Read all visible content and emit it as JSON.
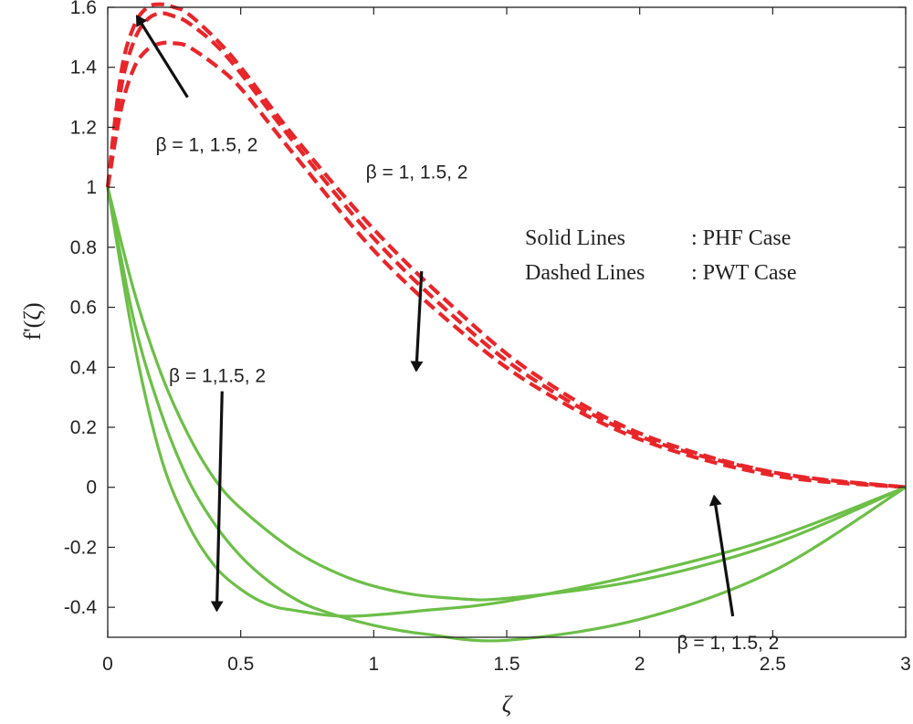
{
  "chart_data": {
    "type": "line",
    "xlabel": "ζ",
    "ylabel": "f'(ζ)",
    "xlim": [
      0,
      3
    ],
    "ylim": [
      -0.5,
      1.6
    ],
    "xticks": [
      "0",
      "0.5",
      "1",
      "1.5",
      "2",
      "2.5",
      "3"
    ],
    "yticks": [
      "-0.4",
      "-0.2",
      "0",
      "0.2",
      "0.4",
      "0.6",
      "0.8",
      "1",
      "1.2",
      "1.4",
      "1.6"
    ],
    "grid": false,
    "colors": {
      "solid": "#6cbf47",
      "dashed": "#e8262a",
      "arrow": "#111111",
      "axis": "#222222"
    },
    "series": [
      {
        "style": "dashed",
        "x": [
          0,
          0.05,
          0.1,
          0.15,
          0.2,
          0.25,
          0.3,
          0.4,
          0.5,
          0.7,
          1.0,
          1.3,
          1.6,
          2.0,
          2.5,
          3.0
        ],
        "values": [
          1.0,
          1.38,
          1.54,
          1.6,
          1.61,
          1.6,
          1.58,
          1.5,
          1.4,
          1.17,
          0.86,
          0.6,
          0.38,
          0.18,
          0.05,
          0.0
        ]
      },
      {
        "style": "dashed",
        "x": [
          0,
          0.05,
          0.1,
          0.15,
          0.2,
          0.25,
          0.3,
          0.4,
          0.5,
          0.7,
          1.0,
          1.3,
          1.6,
          2.0,
          2.5,
          3.0
        ],
        "values": [
          1.0,
          1.33,
          1.49,
          1.56,
          1.58,
          1.57,
          1.55,
          1.48,
          1.38,
          1.15,
          0.83,
          0.57,
          0.36,
          0.17,
          0.05,
          0.0
        ]
      },
      {
        "style": "dashed",
        "x": [
          0,
          0.05,
          0.1,
          0.15,
          0.2,
          0.25,
          0.3,
          0.4,
          0.5,
          0.7,
          1.0,
          1.3,
          1.6,
          2.0,
          2.5,
          3.0
        ],
        "values": [
          1.0,
          1.26,
          1.4,
          1.46,
          1.48,
          1.48,
          1.47,
          1.41,
          1.33,
          1.11,
          0.79,
          0.54,
          0.34,
          0.16,
          0.04,
          0.0
        ]
      },
      {
        "style": "solid",
        "x": [
          0,
          0.1,
          0.2,
          0.3,
          0.4,
          0.5,
          0.6,
          0.7,
          0.8,
          1.0,
          1.2,
          1.5,
          2.0,
          2.5,
          3.0
        ],
        "values": [
          1.0,
          0.55,
          0.25,
          0.03,
          -0.12,
          -0.23,
          -0.31,
          -0.37,
          -0.41,
          -0.46,
          -0.49,
          -0.51,
          -0.44,
          -0.28,
          0.0
        ]
      },
      {
        "style": "solid",
        "x": [
          0,
          0.1,
          0.2,
          0.3,
          0.4,
          0.5,
          0.7,
          0.9,
          1.1,
          1.3,
          1.5,
          2.0,
          2.5,
          3.0
        ],
        "values": [
          1.0,
          0.65,
          0.38,
          0.18,
          0.03,
          -0.07,
          -0.21,
          -0.3,
          -0.35,
          -0.37,
          -0.37,
          -0.31,
          -0.19,
          0.0
        ]
      },
      {
        "style": "solid",
        "x": [
          0,
          0.1,
          0.2,
          0.3,
          0.4,
          0.5,
          0.6,
          0.7,
          0.9,
          1.2,
          1.5,
          2.0,
          2.5,
          3.0
        ],
        "values": [
          1.0,
          0.48,
          0.1,
          -0.12,
          -0.26,
          -0.34,
          -0.39,
          -0.41,
          -0.43,
          -0.41,
          -0.38,
          -0.29,
          -0.17,
          0.0
        ]
      }
    ],
    "annotations": [
      {
        "text": "β = 1, 1.5, 2",
        "x": 0.18,
        "y": 1.12
      },
      {
        "text": "β = 1, 1.5, 2",
        "x": 0.97,
        "y": 1.03
      },
      {
        "text": "β = 1,1.5, 2",
        "x": 0.23,
        "y": 0.35
      },
      {
        "text": "β = 1, 1.5, 2",
        "x": 2.14,
        "y": -0.54
      }
    ],
    "arrows": [
      {
        "from": [
          0.3,
          1.3
        ],
        "to": [
          0.11,
          1.57
        ]
      },
      {
        "from": [
          1.18,
          0.72
        ],
        "to": [
          1.16,
          0.39
        ]
      },
      {
        "from": [
          0.43,
          0.32
        ],
        "to": [
          0.41,
          -0.41
        ]
      },
      {
        "from": [
          2.35,
          -0.43
        ],
        "to": [
          2.28,
          -0.03
        ]
      }
    ],
    "legend": {
      "position": "upper-right",
      "rows": [
        {
          "key": "Solid Lines",
          "value": ": PHF Case"
        },
        {
          "key": "Dashed Lines",
          "value": ": PWT Case"
        }
      ]
    }
  }
}
